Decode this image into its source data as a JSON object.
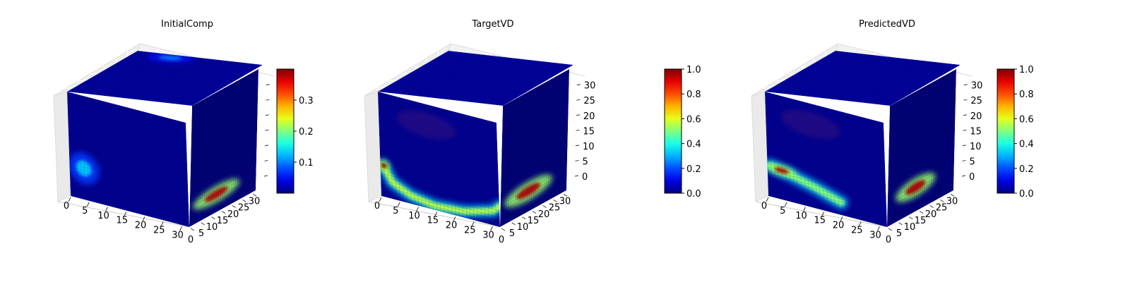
{
  "chart_data": [
    {
      "type": "heatmap",
      "subtype": "3d-voxel-cube",
      "title": "InitialComp",
      "x_ticks": [
        0,
        5,
        10,
        15,
        20,
        25,
        30
      ],
      "y_ticks": [
        0,
        5,
        10,
        15,
        20,
        25,
        30
      ],
      "z_ticks": [
        "",
        "",
        "",
        "",
        "",
        "",
        ""
      ],
      "axis_range": [
        0,
        32
      ],
      "colormap": "jet",
      "colorbar": {
        "min": 0.0,
        "max": 0.4,
        "ticks": [
          0.1,
          0.2,
          0.3
        ],
        "tick_labels": [
          "0.1",
          "0.2",
          "0.3"
        ]
      },
      "features": [
        {
          "face": "front",
          "u": 0.12,
          "v": 0.3,
          "ru": 0.13,
          "rv": 0.15,
          "value": 0.13
        },
        {
          "face": "top",
          "u": 0.3,
          "v": 0.93,
          "ru": 0.18,
          "rv": 0.1,
          "value": 0.1
        },
        {
          "face": "side",
          "u": 0.4,
          "v": 0.15,
          "ru": 0.35,
          "rv": 0.07,
          "value": 0.38,
          "edge": true
        }
      ]
    },
    {
      "type": "heatmap",
      "subtype": "3d-voxel-cube",
      "title": "TargetVD",
      "x_ticks": [
        0,
        5,
        10,
        15,
        20,
        25,
        30
      ],
      "y_ticks": [
        0,
        5,
        10,
        15,
        20,
        25,
        30
      ],
      "z_ticks": [
        0,
        5,
        10,
        15,
        20,
        25,
        30
      ],
      "axis_range": [
        0,
        32
      ],
      "colormap": "jet",
      "colorbar": {
        "min": 0.0,
        "max": 1.0,
        "ticks": [
          0.0,
          0.2,
          0.4,
          0.6,
          0.8,
          1.0
        ],
        "tick_labels": [
          "0.0",
          "0.2",
          "0.4",
          "0.6",
          "0.8",
          "1.0"
        ]
      },
      "features": [
        {
          "face": "front",
          "path": [
            [
              0.02,
              0.3
            ],
            [
              0.1,
              0.16
            ],
            [
              0.25,
              0.08
            ],
            [
              0.45,
              0.04
            ],
            [
              0.7,
              0.06
            ],
            [
              0.95,
              0.14
            ],
            [
              1.0,
              0.2
            ]
          ],
          "width": 0.07,
          "value": 0.55
        },
        {
          "face": "front",
          "u": 0.03,
          "v": 0.3,
          "ru": 0.05,
          "rv": 0.05,
          "value": 1.0
        },
        {
          "face": "side",
          "u": 0.42,
          "v": 0.17,
          "ru": 0.36,
          "rv": 0.08,
          "value": 0.95,
          "edge": true
        },
        {
          "face": "front",
          "u": 0.4,
          "v": 0.8,
          "ru": 0.25,
          "rv": 0.12,
          "value": 0.3,
          "faint": true
        }
      ]
    },
    {
      "type": "heatmap",
      "subtype": "3d-voxel-cube",
      "title": "PredictedVD",
      "x_ticks": [
        0,
        5,
        10,
        15,
        20,
        25,
        30
      ],
      "y_ticks": [
        0,
        5,
        10,
        15,
        20,
        25,
        30
      ],
      "z_ticks": [
        0,
        5,
        10,
        15,
        20,
        25,
        30
      ],
      "axis_range": [
        0,
        32
      ],
      "colormap": "jet",
      "colorbar": {
        "min": 0.0,
        "max": 1.0,
        "ticks": [
          0.0,
          0.2,
          0.4,
          0.6,
          0.8,
          1.0
        ],
        "tick_labels": [
          "0.0",
          "0.2",
          "0.4",
          "0.6",
          "0.8",
          "1.0"
        ]
      },
      "features": [
        {
          "face": "front",
          "path": [
            [
              0.02,
              0.3
            ],
            [
              0.2,
              0.26
            ],
            [
              0.4,
              0.2
            ],
            [
              0.62,
              0.12
            ]
          ],
          "width": 0.08,
          "value": 0.5
        },
        {
          "face": "front",
          "u": 0.12,
          "v": 0.28,
          "ru": 0.12,
          "rv": 0.05,
          "value": 0.95
        },
        {
          "face": "side",
          "u": 0.42,
          "v": 0.2,
          "ru": 0.3,
          "rv": 0.08,
          "value": 0.95,
          "edge": true
        },
        {
          "face": "front",
          "u": 0.38,
          "v": 0.8,
          "ru": 0.25,
          "rv": 0.12,
          "value": 0.3,
          "faint": true
        }
      ]
    }
  ]
}
